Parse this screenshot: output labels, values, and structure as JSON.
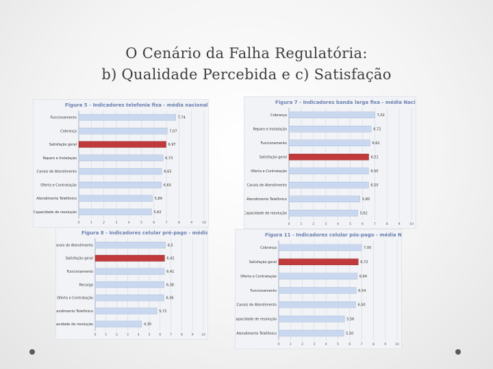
{
  "slide": {
    "title_line1": "O Cenário da Falha Regulatória:",
    "title_line2": "b) Qualidade Percebida  e  c) Satisfação"
  },
  "chart_data": [
    {
      "type": "bar",
      "orientation": "horizontal",
      "title": "Figura 5 - Indicadores telefonia fixa - média nacional",
      "categories": [
        "Funcionamento",
        "Cobrança",
        "Satisfação geral",
        "Reparo e Instalação",
        "Canais de Atendimento",
        "Oferta e Contratação",
        "Atendimento Telefônico",
        "Capacidade de resolução"
      ],
      "values": [
        7.74,
        7.07,
        6.97,
        6.73,
        6.63,
        6.6,
        5.89,
        5.82
      ],
      "value_labels": [
        "7,74",
        "7,07",
        "6,97",
        "6,73",
        "6,63",
        "6,60",
        "5,89",
        "5,82"
      ],
      "highlight_index": 2,
      "xlim": [
        0,
        10
      ],
      "xticks": [
        "0",
        "1",
        "2",
        "3",
        "4",
        "5",
        "6",
        "7",
        "8",
        "9",
        "10"
      ],
      "bar_color": "#c9d8ee",
      "highlight_color": "#c0393b",
      "grid": true
    },
    {
      "type": "bar",
      "orientation": "horizontal",
      "title": "Figura 7 - Indicadores banda larga fixa - média Nacional",
      "categories": [
        "Cobrança",
        "Reparo e Instalação",
        "Funcionamento",
        "Satisfação geral",
        "Oferta e Contratação",
        "Canais de Atendimento",
        "Atendimento Telefônico",
        "Capacidade de resolução"
      ],
      "values": [
        7.02,
        6.72,
        6.62,
        6.51,
        6.5,
        6.5,
        5.8,
        5.62
      ],
      "value_labels": [
        "7,02",
        "6,72",
        "6,62",
        "6,51",
        "6,50",
        "6,50",
        "5,80",
        "5,62"
      ],
      "highlight_index": 3,
      "xlim": [
        0,
        10
      ],
      "xticks": [
        "0",
        "1",
        "2",
        "3",
        "4",
        "5",
        "6",
        "7",
        "8",
        "9",
        "10"
      ],
      "bar_color": "#c9d8ee",
      "highlight_color": "#c0393b",
      "grid": true
    },
    {
      "type": "bar",
      "orientation": "horizontal",
      "title": "Figura 8 - Indicadores celular pré-pago - média Nacional",
      "categories": [
        "Canais de Atendimento",
        "Satisfação geral",
        "Funcionamento",
        "Recarga",
        "Oferta e Contratação",
        "Atendimento Telefônico",
        "Capacidade de resolução"
      ],
      "values": [
        6.5,
        6.42,
        6.41,
        6.38,
        6.36,
        5.72,
        4.3
      ],
      "value_labels": [
        "6,5",
        "6,42",
        "6,41",
        "6,38",
        "6,36",
        "5,72",
        "4,30"
      ],
      "highlight_index": 1,
      "xlim": [
        0,
        10
      ],
      "xticks": [
        "0",
        "1",
        "2",
        "3",
        "4",
        "5",
        "6",
        "7",
        "8",
        "9",
        "10"
      ],
      "bar_color": "#c9d8ee",
      "highlight_color": "#c0393b",
      "grid": true
    },
    {
      "type": "bar",
      "orientation": "horizontal",
      "title": "Figura 11 - Indicadores celular pós-pago - média Nacional",
      "categories": [
        "Cobrança",
        "Satisfação geral",
        "Oferta e Contratação",
        "Funcionamento",
        "Canais de Atendimento",
        "Capacidade de resolução",
        "Atendimento Telefônico"
      ],
      "values": [
        7.0,
        6.72,
        6.64,
        6.54,
        6.5,
        5.56,
        5.5
      ],
      "value_labels": [
        "7,00",
        "6,72",
        "6,64",
        "6,54",
        "6,50",
        "5,56",
        "5,50"
      ],
      "highlight_index": 1,
      "xlim": [
        0,
        10
      ],
      "xticks": [
        "0",
        "1",
        "2",
        "3",
        "4",
        "5",
        "6",
        "7",
        "8",
        "9",
        "10"
      ],
      "bar_color": "#c9d8ee",
      "highlight_color": "#c0393b",
      "grid": true
    }
  ]
}
